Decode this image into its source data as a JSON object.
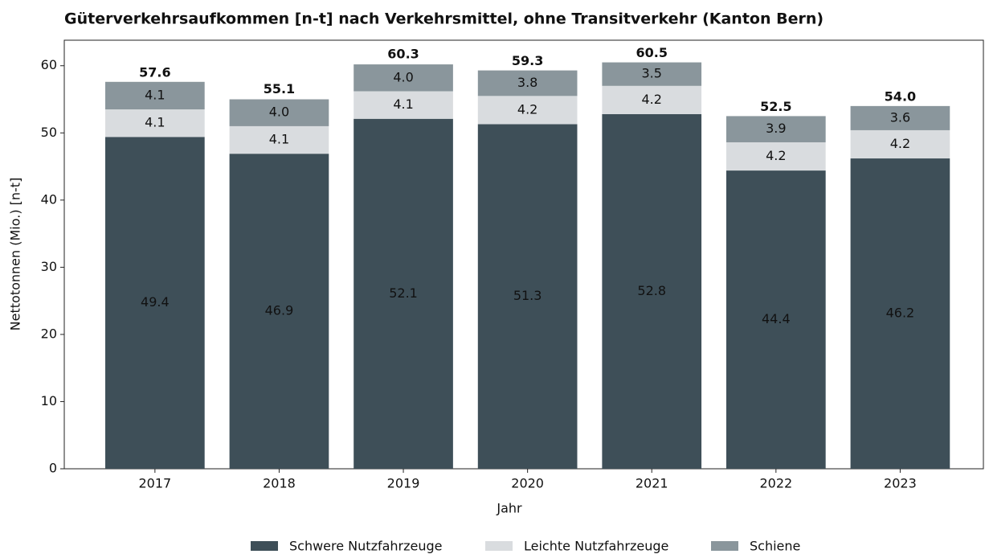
{
  "chart_data": {
    "type": "stacked_bar",
    "title": "Güterverkehrsaufkommen [n-t] nach Verkehrsmittel, ohne Transitverkehr (Kanton Bern)",
    "xlabel": "Jahr",
    "ylabel": "Nettotonnen (Mio.) [n-t]",
    "categories": [
      "2017",
      "2018",
      "2019",
      "2020",
      "2021",
      "2022",
      "2023"
    ],
    "series": [
      {
        "name": "Schwere Nutzfahrzeuge",
        "color": "#3e4f58",
        "values": [
          49.4,
          46.9,
          52.1,
          51.3,
          52.8,
          44.4,
          46.2
        ]
      },
      {
        "name": "Leichte Nutzfahrzeuge",
        "color": "#d9dcdf",
        "values": [
          4.1,
          4.1,
          4.1,
          4.2,
          4.2,
          4.2,
          4.2
        ]
      },
      {
        "name": "Schiene",
        "color": "#8a969c",
        "values": [
          4.1,
          4.0,
          4.0,
          3.8,
          3.5,
          3.9,
          3.6
        ],
        "value_labels": [
          "4.1",
          "4.0",
          "4.0",
          "3.8",
          "3.5",
          "3.9",
          "3.6"
        ]
      }
    ],
    "totals": [
      57.6,
      55.1,
      60.3,
      59.3,
      60.5,
      52.5,
      54.0
    ],
    "total_labels": [
      "57.6",
      "55.1",
      "60.3",
      "59.3",
      "60.5",
      "52.5",
      "54.0"
    ],
    "ylim": [
      0,
      63.8
    ],
    "yticks": [
      0,
      10,
      20,
      30,
      40,
      50,
      60
    ],
    "legend": "bottom"
  }
}
